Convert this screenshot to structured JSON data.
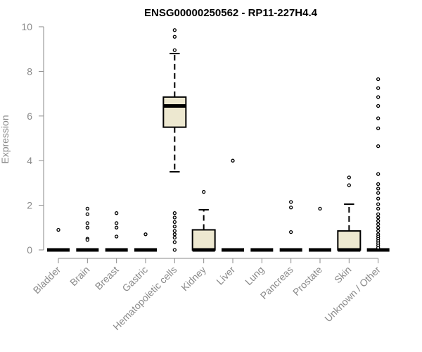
{
  "chart_data": {
    "type": "box",
    "title": "ENSG00000250562 - RP11-227H4.4",
    "ylabel": "Expression",
    "xlabel": "",
    "ylim": [
      0,
      10
    ],
    "yticks": [
      0,
      2,
      4,
      6,
      8,
      10
    ],
    "grid": false,
    "box_fill": "#ede8d0",
    "categories": [
      "Bladder",
      "Brain",
      "Breast",
      "Gastric",
      "Hematopoietic cells",
      "Kidney",
      "Liver",
      "Lung",
      "Pancreas",
      "Prostate",
      "Skin",
      "Unknown / Other"
    ],
    "boxes": [
      {
        "q1": 0,
        "median": 0,
        "q3": 0,
        "whisker_low": 0,
        "whisker_high": 0,
        "outliers": [
          0.9
        ]
      },
      {
        "q1": 0,
        "median": 0,
        "q3": 0,
        "whisker_low": 0,
        "whisker_high": 0,
        "outliers": [
          1.85,
          1.6,
          1.2,
          1.0,
          0.5,
          0.45
        ]
      },
      {
        "q1": 0,
        "median": 0,
        "q3": 0,
        "whisker_low": 0,
        "whisker_high": 0,
        "outliers": [
          1.65,
          1.2,
          1.0,
          0.6
        ]
      },
      {
        "q1": 0,
        "median": 0,
        "q3": 0,
        "whisker_low": 0,
        "whisker_high": 0,
        "outliers": [
          0.7
        ]
      },
      {
        "q1": 5.5,
        "median": 6.45,
        "q3": 6.85,
        "whisker_low": 3.5,
        "whisker_high": 8.8,
        "outliers": [
          9.85,
          9.55,
          8.95,
          1.65,
          1.45,
          1.25,
          1.05,
          0.85,
          0.7,
          0.55,
          0.35,
          0.0
        ]
      },
      {
        "q1": 0,
        "median": 0,
        "q3": 0.9,
        "whisker_low": 0,
        "whisker_high": 1.8,
        "outliers": [
          2.6
        ]
      },
      {
        "q1": 0,
        "median": 0,
        "q3": 0,
        "whisker_low": 0,
        "whisker_high": 0,
        "outliers": [
          4.0
        ]
      },
      {
        "q1": 0,
        "median": 0,
        "q3": 0,
        "whisker_low": 0,
        "whisker_high": 0,
        "outliers": []
      },
      {
        "q1": 0,
        "median": 0,
        "q3": 0,
        "whisker_low": 0,
        "whisker_high": 0,
        "outliers": [
          2.15,
          1.9,
          0.8
        ]
      },
      {
        "q1": 0,
        "median": 0,
        "q3": 0,
        "whisker_low": 0,
        "whisker_high": 0,
        "outliers": [
          1.85
        ]
      },
      {
        "q1": 0,
        "median": 0,
        "q3": 0.85,
        "whisker_low": 0,
        "whisker_high": 2.05,
        "outliers": [
          3.25,
          2.9
        ]
      },
      {
        "q1": 0,
        "median": 0,
        "q3": 0,
        "whisker_low": 0,
        "whisker_high": 0,
        "outliers": [
          7.65,
          7.25,
          6.85,
          6.45,
          5.9,
          5.45,
          4.65,
          3.4,
          2.95,
          2.75,
          2.55,
          2.3,
          2.05,
          1.85,
          1.6,
          1.45,
          1.3,
          1.15,
          1.0,
          0.85,
          0.7,
          0.6,
          0.5,
          0.4,
          0.3,
          0.2,
          0.1
        ]
      }
    ]
  }
}
